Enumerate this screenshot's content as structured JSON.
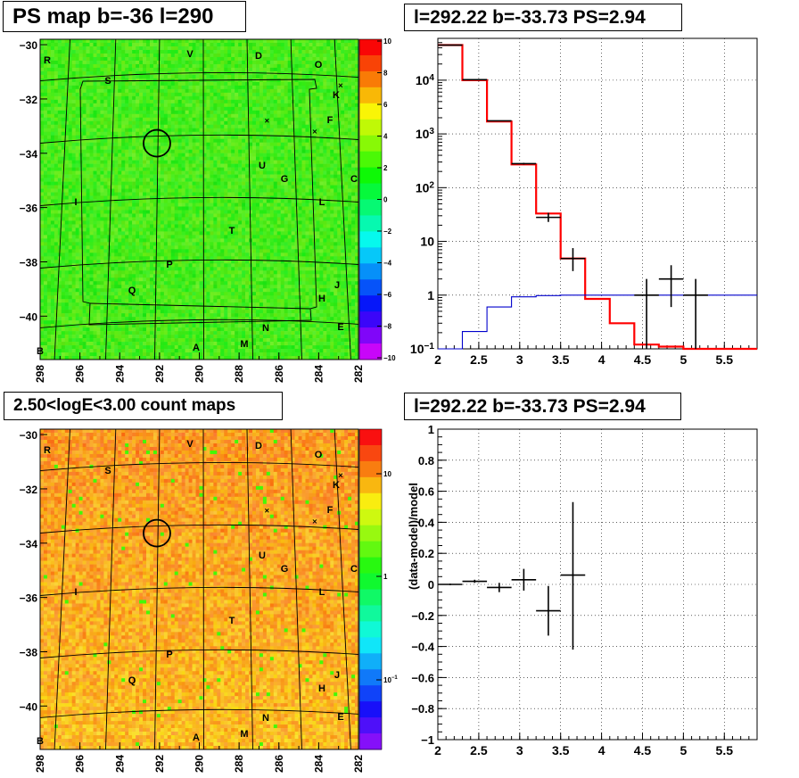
{
  "panels": {
    "top_left_title": "PS map b=-36 l=290",
    "top_right_title": "l=292.22 b=-33.73 PS=2.94",
    "bottom_left_title": "2.50<logE<3.00 count maps",
    "bottom_right_title": "l=292.22 b=-33.73 PS=2.94"
  },
  "chart_data": [
    {
      "type": "heatmap",
      "title": "PS map b=-36 l=290",
      "x_ticks": [
        "298",
        "296",
        "294",
        "292",
        "290",
        "288",
        "286",
        "284",
        "282"
      ],
      "y_ticks": [
        "-30",
        "-32",
        "-34",
        "-36",
        "-38",
        "-40"
      ],
      "xlim": [
        298,
        282
      ],
      "ylim": [
        -41.6,
        -29.8
      ],
      "z_range": [
        -10,
        10
      ],
      "colorbar_ticks": [
        "10",
        "8",
        "6",
        "4",
        "2",
        "0",
        "−2",
        "−4",
        "−6",
        "−8",
        "−10"
      ],
      "region_labels": [
        "R",
        "S",
        "V",
        "D",
        "O",
        "K",
        "F",
        "C",
        "U",
        "G",
        "I",
        "L",
        "T",
        "P",
        "Q",
        "H",
        "J",
        "N",
        "E",
        "B",
        "A",
        "M"
      ],
      "marker": {
        "l": 292.22,
        "b": -33.73
      }
    },
    {
      "type": "line",
      "title": "l=292.22 b=-33.73 PS=2.94",
      "y_scale": "log",
      "xlim": [
        2.0,
        5.9
      ],
      "ylim": [
        0.1,
        60000
      ],
      "x_ticks": [
        "2",
        "2.5",
        "3",
        "3.5",
        "4",
        "4.5",
        "5",
        "5.5"
      ],
      "y_ticks": [
        "10^{-1}",
        "1",
        "10",
        "10^{2}",
        "10^{3}",
        "10^{4}"
      ],
      "series": [
        {
          "color": "#ff0000",
          "bin_edges": [
            2.0,
            2.3,
            2.6,
            2.9,
            3.2,
            3.5,
            3.8,
            4.1,
            4.4,
            4.7,
            5.0,
            5.3,
            5.6,
            5.9
          ],
          "values": [
            45000,
            10000,
            1700,
            270,
            33,
            4.8,
            0.85,
            0.3,
            0.12,
            0.11,
            0.1,
            0.1,
            0.1
          ]
        },
        {
          "color": "#0000cc",
          "bin_edges": [
            2.0,
            2.3,
            2.6,
            2.9,
            3.2,
            3.5,
            3.8,
            4.1,
            4.4,
            4.7,
            5.0,
            5.3,
            5.6,
            5.9
          ],
          "values": [
            0.1,
            0.21,
            0.6,
            0.93,
            0.98,
            1.0,
            1.0,
            1.0,
            1.0,
            1.0,
            1.0,
            1.0,
            1.0
          ]
        },
        {
          "color": "#000000",
          "points": [
            {
              "x": 2.15,
              "y": 45000,
              "xerr": 0.15,
              "ylo": 45000,
              "yhi": 45000
            },
            {
              "x": 2.45,
              "y": 10200,
              "xerr": 0.15,
              "ylo": 10200,
              "yhi": 10200
            },
            {
              "x": 2.75,
              "y": 1750,
              "xerr": 0.15,
              "ylo": 1750,
              "yhi": 1750
            },
            {
              "x": 3.05,
              "y": 280,
              "xerr": 0.15,
              "ylo": 270,
              "yhi": 290
            },
            {
              "x": 3.35,
              "y": 28,
              "xerr": 0.15,
              "ylo": 23,
              "yhi": 34
            },
            {
              "x": 3.65,
              "y": 4.8,
              "xerr": 0.15,
              "ylo": 2.8,
              "yhi": 7.5
            },
            {
              "x": 4.55,
              "y": 1.0,
              "xerr": 0.15,
              "ylo": 0.1,
              "yhi": 2.0
            },
            {
              "x": 4.85,
              "y": 2.0,
              "xerr": 0.15,
              "ylo": 0.6,
              "yhi": 3.6
            },
            {
              "x": 5.15,
              "y": 1.0,
              "xerr": 0.15,
              "ylo": 0.1,
              "yhi": 2.0
            }
          ]
        }
      ]
    },
    {
      "type": "heatmap",
      "title": "2.50<logE<3.00 count maps",
      "x_ticks": [
        "298",
        "296",
        "294",
        "292",
        "290",
        "288",
        "286",
        "284",
        "282"
      ],
      "y_ticks": [
        "-30",
        "-32",
        "-34",
        "-36",
        "-38",
        "-40"
      ],
      "xlim": [
        298,
        282
      ],
      "ylim": [
        -41.6,
        -29.8
      ],
      "z_scale": "log",
      "colorbar_ticks": [
        "10",
        "1",
        "10^{-1}"
      ],
      "region_labels": [
        "R",
        "S",
        "V",
        "D",
        "O",
        "K",
        "F",
        "C",
        "U",
        "G",
        "I",
        "L",
        "T",
        "P",
        "Q",
        "H",
        "J",
        "N",
        "E",
        "B",
        "A",
        "M"
      ]
    },
    {
      "type": "scatter",
      "title": "l=292.22 b=-33.73 PS=2.94",
      "ylabel": "(data-model)/model",
      "xlim": [
        2.0,
        5.9
      ],
      "ylim": [
        -1,
        1
      ],
      "x_ticks": [
        "2",
        "2.5",
        "3",
        "3.5",
        "4",
        "4.5",
        "5",
        "5.5"
      ],
      "y_ticks": [
        "1",
        "0.8",
        "0.6",
        "0.4",
        "0.2",
        "0",
        "−0.2",
        "−0.4",
        "−0.6",
        "−0.8",
        "−1"
      ],
      "points": [
        {
          "x": 2.15,
          "y": 0.0,
          "xerr": 0.15,
          "yerr": 0.005
        },
        {
          "x": 2.45,
          "y": 0.02,
          "xerr": 0.15,
          "yerr": 0.01
        },
        {
          "x": 2.75,
          "y": -0.02,
          "xerr": 0.15,
          "yerr": 0.03
        },
        {
          "x": 3.05,
          "y": 0.03,
          "xerr": 0.15,
          "yerr": 0.07
        },
        {
          "x": 3.35,
          "y": -0.17,
          "xerr": 0.15,
          "yerr": 0.16
        },
        {
          "x": 3.65,
          "y": 0.06,
          "xerr": 0.15,
          "ylo": -0.42,
          "yhi": 0.53
        }
      ]
    }
  ]
}
